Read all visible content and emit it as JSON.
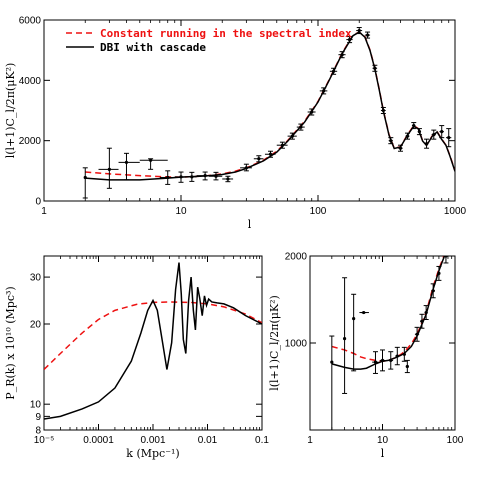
{
  "chart_data": [
    {
      "type": "line",
      "xscale": "log",
      "xlim": [
        1,
        1000
      ],
      "ylim": [
        0,
        6000
      ],
      "xlabel": "l",
      "ylabel": "l(l+1)C_l/2π(μK²)",
      "xticks": [
        {
          "v": 1,
          "label": "1"
        },
        {
          "v": 10,
          "label": "10"
        },
        {
          "v": 100,
          "label": "100"
        },
        {
          "v": 1000,
          "label": "1000"
        }
      ],
      "yticks": [
        {
          "v": 0,
          "label": "0"
        },
        {
          "v": 2000,
          "label": "2000"
        },
        {
          "v": 4000,
          "label": "4000"
        },
        {
          "v": 6000,
          "label": "6000"
        }
      ],
      "legend_position": "top-left",
      "series": [
        {
          "name": "Constant running in the spectral index",
          "style": "dashed",
          "color": "#ee1111",
          "x": [
            2,
            3,
            5,
            8,
            10,
            15,
            20,
            25,
            30,
            40,
            50,
            60,
            80,
            100,
            120,
            150,
            180,
            200,
            220,
            240,
            260,
            280,
            300,
            330,
            360,
            400,
            450,
            500,
            540,
            580,
            620,
            680,
            740,
            800,
            860,
            920,
            1000
          ],
          "y": [
            960,
            900,
            840,
            800,
            790,
            830,
            900,
            990,
            1100,
            1350,
            1650,
            2000,
            2650,
            3300,
            4000,
            4900,
            5500,
            5600,
            5450,
            5000,
            4400,
            3700,
            3000,
            2200,
            1750,
            1800,
            2200,
            2500,
            2400,
            2000,
            1850,
            2150,
            2300,
            2050,
            1850,
            1500,
            1000
          ]
        },
        {
          "name": "DBI with cascade",
          "style": "solid",
          "color": "#000000",
          "x": [
            2,
            3,
            5,
            8,
            10,
            15,
            20,
            25,
            30,
            40,
            50,
            60,
            80,
            100,
            120,
            150,
            180,
            200,
            220,
            240,
            260,
            280,
            300,
            330,
            360,
            400,
            450,
            500,
            540,
            580,
            620,
            680,
            740,
            800,
            860,
            920,
            1000
          ],
          "y": [
            760,
            700,
            700,
            760,
            790,
            830,
            880,
            960,
            1080,
            1330,
            1620,
            1980,
            2620,
            3280,
            3980,
            4880,
            5480,
            5600,
            5430,
            4980,
            4380,
            3680,
            2980,
            2180,
            1740,
            1790,
            2180,
            2480,
            2390,
            1990,
            1840,
            2140,
            2290,
            2040,
            1840,
            1480,
            980
          ]
        }
      ],
      "points": [
        {
          "x": 2,
          "y": 780,
          "ylo": 100,
          "yhi": 1100,
          "xlo": 2,
          "xhi": 2
        },
        {
          "x": 3,
          "y": 1050,
          "ylo": 420,
          "yhi": 1750,
          "xlo": 2.5,
          "xhi": 3.5
        },
        {
          "x": 4,
          "y": 1280,
          "ylo": 700,
          "yhi": 1580,
          "xlo": 3.5,
          "xhi": 5
        },
        {
          "x": 6,
          "y": 1350,
          "ylo": 1050,
          "yhi": 1400,
          "xlo": 5,
          "xhi": 8
        },
        {
          "x": 8,
          "y": 780,
          "ylo": 550,
          "yhi": 1000,
          "xlo": 7,
          "xhi": 9
        },
        {
          "x": 10,
          "y": 800,
          "ylo": 620,
          "yhi": 960,
          "xlo": 9,
          "xhi": 11
        },
        {
          "x": 12,
          "y": 800,
          "ylo": 650,
          "yhi": 950,
          "xlo": 11,
          "xhi": 13
        },
        {
          "x": 15,
          "y": 840,
          "ylo": 700,
          "yhi": 960,
          "xlo": 13,
          "xhi": 17
        },
        {
          "x": 18,
          "y": 820,
          "ylo": 700,
          "yhi": 950,
          "xlo": 16,
          "xhi": 20
        },
        {
          "x": 22,
          "y": 730,
          "ylo": 640,
          "yhi": 820,
          "xlo": 20,
          "xhi": 24
        },
        {
          "x": 30,
          "y": 1100,
          "ylo": 1000,
          "yhi": 1220,
          "xlo": 27,
          "xhi": 33
        },
        {
          "x": 37,
          "y": 1400,
          "ylo": 1300,
          "yhi": 1500,
          "xlo": 34,
          "xhi": 40
        },
        {
          "x": 45,
          "y": 1550,
          "ylo": 1450,
          "yhi": 1650,
          "xlo": 41,
          "xhi": 49
        },
        {
          "x": 55,
          "y": 1850,
          "ylo": 1750,
          "yhi": 1950,
          "xlo": 50,
          "xhi": 60
        },
        {
          "x": 65,
          "y": 2150,
          "ylo": 2050,
          "yhi": 2250,
          "xlo": 60,
          "xhi": 70
        },
        {
          "x": 75,
          "y": 2450,
          "ylo": 2350,
          "yhi": 2550,
          "xlo": 70,
          "xhi": 80
        },
        {
          "x": 90,
          "y": 2950,
          "ylo": 2850,
          "yhi": 3050,
          "xlo": 84,
          "xhi": 96
        },
        {
          "x": 110,
          "y": 3650,
          "ylo": 3550,
          "yhi": 3750,
          "xlo": 103,
          "xhi": 117
        },
        {
          "x": 130,
          "y": 4300,
          "ylo": 4200,
          "yhi": 4400,
          "xlo": 122,
          "xhi": 138
        },
        {
          "x": 150,
          "y": 4850,
          "ylo": 4750,
          "yhi": 4950,
          "xlo": 141,
          "xhi": 159
        },
        {
          "x": 170,
          "y": 5350,
          "ylo": 5250,
          "yhi": 5450,
          "xlo": 161,
          "xhi": 179
        },
        {
          "x": 200,
          "y": 5650,
          "ylo": 5550,
          "yhi": 5750,
          "xlo": 190,
          "xhi": 210
        },
        {
          "x": 230,
          "y": 5500,
          "ylo": 5400,
          "yhi": 5600,
          "xlo": 220,
          "xhi": 240
        },
        {
          "x": 260,
          "y": 4400,
          "ylo": 4300,
          "yhi": 4500,
          "xlo": 250,
          "xhi": 270
        },
        {
          "x": 300,
          "y": 3000,
          "ylo": 2900,
          "yhi": 3100,
          "xlo": 288,
          "xhi": 312
        },
        {
          "x": 340,
          "y": 2000,
          "ylo": 1900,
          "yhi": 2100,
          "xlo": 328,
          "xhi": 352
        },
        {
          "x": 400,
          "y": 1750,
          "ylo": 1650,
          "yhi": 1850,
          "xlo": 385,
          "xhi": 415
        },
        {
          "x": 450,
          "y": 2150,
          "ylo": 2050,
          "yhi": 2250,
          "xlo": 435,
          "xhi": 465
        },
        {
          "x": 500,
          "y": 2500,
          "ylo": 2400,
          "yhi": 2600,
          "xlo": 485,
          "xhi": 515
        },
        {
          "x": 550,
          "y": 2300,
          "ylo": 2200,
          "yhi": 2400,
          "xlo": 535,
          "xhi": 565
        },
        {
          "x": 620,
          "y": 1900,
          "ylo": 1750,
          "yhi": 2050,
          "xlo": 600,
          "xhi": 640
        },
        {
          "x": 700,
          "y": 2200,
          "ylo": 2050,
          "yhi": 2350,
          "xlo": 675,
          "xhi": 725
        },
        {
          "x": 800,
          "y": 2300,
          "ylo": 2100,
          "yhi": 2500,
          "xlo": 770,
          "xhi": 830
        },
        {
          "x": 900,
          "y": 2100,
          "ylo": 1800,
          "yhi": 2400,
          "xlo": 860,
          "xhi": 940
        }
      ]
    },
    {
      "type": "line",
      "xscale": "log",
      "yscale": "log",
      "xlim": [
        1e-05,
        0.1
      ],
      "ylim": [
        8,
        36
      ],
      "xlabel": "k (Mpc⁻¹)",
      "ylabel": "P_R(k) x 10¹⁰ (Mpc³)",
      "xticks": [
        {
          "v": 1e-05,
          "label": "10⁻⁵"
        },
        {
          "v": 0.0001,
          "label": "0.0001"
        },
        {
          "v": 0.001,
          "label": "0.001"
        },
        {
          "v": 0.01,
          "label": "0.01"
        },
        {
          "v": 0.1,
          "label": "0.1"
        }
      ],
      "yticks": [
        {
          "v": 8,
          "label": "8"
        },
        {
          "v": 9,
          "label": "9"
        },
        {
          "v": 10,
          "label": "10"
        },
        {
          "v": 20,
          "label": "20"
        },
        {
          "v": 30,
          "label": "30"
        }
      ],
      "series": [
        {
          "name": "",
          "style": "dashed",
          "color": "#ee1111",
          "x": [
            1e-05,
            2e-05,
            5e-05,
            0.0001,
            0.0002,
            0.0005,
            0.001,
            0.002,
            0.005,
            0.01,
            0.02,
            0.05,
            0.1
          ],
          "y": [
            13.5,
            15.5,
            18.5,
            20.8,
            22.5,
            23.7,
            24.1,
            24.2,
            24.1,
            23.8,
            23.2,
            21.8,
            20.2
          ]
        },
        {
          "name": "",
          "style": "solid",
          "color": "#000000",
          "x": [
            1e-05,
            2e-05,
            5e-05,
            0.0001,
            0.0002,
            0.0004,
            0.0006,
            0.0008,
            0.001,
            0.0012,
            0.0015,
            0.0018,
            0.0022,
            0.0026,
            0.003,
            0.0033,
            0.0036,
            0.004,
            0.0045,
            0.005,
            0.0055,
            0.006,
            0.0066,
            0.0072,
            0.008,
            0.0088,
            0.0096,
            0.0105,
            0.012,
            0.015,
            0.02,
            0.03,
            0.05,
            0.1
          ],
          "y": [
            8.8,
            9.0,
            9.6,
            10.2,
            11.5,
            14.5,
            18.5,
            22.5,
            24.5,
            22.5,
            17.0,
            13.5,
            17.0,
            27.0,
            34.0,
            26.0,
            17.5,
            15.5,
            24.5,
            30.0,
            22.5,
            19.0,
            27.5,
            25.0,
            21.5,
            25.5,
            23.5,
            24.8,
            24.2,
            24.0,
            23.8,
            23.0,
            21.5,
            20.0
          ]
        }
      ]
    },
    {
      "type": "line",
      "xscale": "log",
      "xlim": [
        1,
        100
      ],
      "ylim": [
        0,
        2000
      ],
      "xlabel": "l",
      "ylabel": "l(l+1)C_l/2π(μK²)",
      "xticks": [
        {
          "v": 1,
          "label": "1"
        },
        {
          "v": 10,
          "label": "10"
        },
        {
          "v": 100,
          "label": "100"
        }
      ],
      "yticks": [
        {
          "v": 1000,
          "label": "1000"
        },
        {
          "v": 2000,
          "label": "2000"
        }
      ],
      "series": [
        {
          "name": "",
          "style": "dashed",
          "color": "#ee1111",
          "x": [
            2,
            3,
            4,
            5,
            6,
            8,
            10,
            12,
            15,
            18,
            20,
            25,
            30,
            40,
            50,
            60,
            70,
            80
          ],
          "y": [
            960,
            920,
            880,
            840,
            820,
            800,
            790,
            800,
            830,
            870,
            900,
            990,
            1100,
            1350,
            1650,
            1850,
            2000,
            2100
          ]
        },
        {
          "name": "",
          "style": "solid",
          "color": "#000000",
          "x": [
            2,
            3,
            4,
            5,
            6,
            8,
            10,
            12,
            15,
            18,
            20,
            25,
            30,
            40,
            50,
            60,
            70,
            80
          ],
          "y": [
            760,
            720,
            700,
            700,
            710,
            760,
            790,
            800,
            830,
            860,
            880,
            960,
            1080,
            1330,
            1620,
            1830,
            1980,
            2100
          ]
        }
      ],
      "points": [
        {
          "x": 2,
          "y": 780,
          "ylo": 0,
          "yhi": 1080,
          "xlo": 2,
          "xhi": 2
        },
        {
          "x": 3,
          "y": 1050,
          "ylo": 420,
          "yhi": 1750,
          "xlo": 3,
          "xhi": 3
        },
        {
          "x": 4,
          "y": 1280,
          "ylo": 680,
          "yhi": 1560,
          "xlo": 4,
          "xhi": 4
        },
        {
          "x": 5.5,
          "y": 1350,
          "ylo": 1350,
          "yhi": 1350,
          "xlo": 4.8,
          "xhi": 6.5
        },
        {
          "x": 8,
          "y": 780,
          "ylo": 650,
          "yhi": 900,
          "xlo": 7.2,
          "xhi": 8.8
        },
        {
          "x": 10,
          "y": 800,
          "ylo": 680,
          "yhi": 920,
          "xlo": 9.2,
          "xhi": 10.8
        },
        {
          "x": 13,
          "y": 800,
          "ylo": 700,
          "yhi": 900,
          "xlo": 12,
          "xhi": 14
        },
        {
          "x": 16,
          "y": 850,
          "ylo": 750,
          "yhi": 950,
          "xlo": 15,
          "xhi": 17
        },
        {
          "x": 20,
          "y": 870,
          "ylo": 790,
          "yhi": 950,
          "xlo": 19,
          "xhi": 21
        },
        {
          "x": 22,
          "y": 730,
          "ylo": 660,
          "yhi": 800,
          "xlo": 21,
          "xhi": 23
        },
        {
          "x": 30,
          "y": 1100,
          "ylo": 1020,
          "yhi": 1180,
          "xlo": 28,
          "xhi": 32
        },
        {
          "x": 35,
          "y": 1250,
          "ylo": 1170,
          "yhi": 1330,
          "xlo": 33,
          "xhi": 37
        },
        {
          "x": 40,
          "y": 1350,
          "ylo": 1270,
          "yhi": 1430,
          "xlo": 38,
          "xhi": 42
        },
        {
          "x": 50,
          "y": 1600,
          "ylo": 1520,
          "yhi": 1680,
          "xlo": 47,
          "xhi": 53
        },
        {
          "x": 60,
          "y": 1800,
          "ylo": 1720,
          "yhi": 1880,
          "xlo": 57,
          "xhi": 63
        },
        {
          "x": 75,
          "y": 2000,
          "ylo": 1920,
          "yhi": 2080,
          "xlo": 71,
          "xhi": 79
        }
      ]
    }
  ]
}
